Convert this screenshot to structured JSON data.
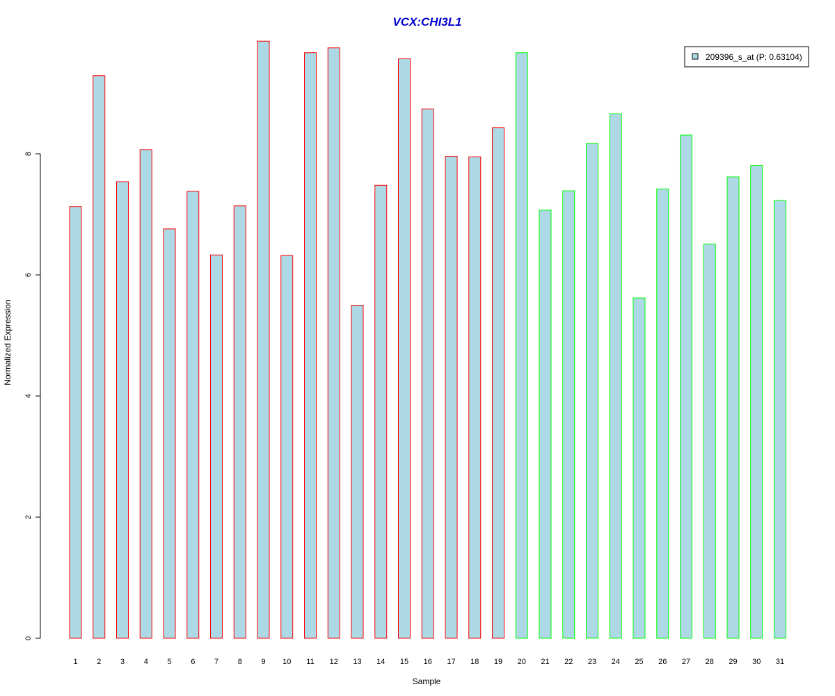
{
  "chart_data": {
    "type": "bar",
    "title": "VCX:CHI3L1",
    "xlabel": "Sample",
    "ylabel": "Normalized Expression",
    "categories": [
      "1",
      "2",
      "3",
      "4",
      "5",
      "6",
      "7",
      "8",
      "9",
      "10",
      "11",
      "12",
      "13",
      "14",
      "15",
      "16",
      "17",
      "18",
      "19",
      "20",
      "21",
      "22",
      "23",
      "24",
      "25",
      "26",
      "27",
      "28",
      "29",
      "30",
      "31"
    ],
    "values": [
      7.13,
      9.29,
      7.54,
      8.07,
      6.76,
      7.38,
      6.33,
      7.14,
      9.86,
      6.32,
      9.67,
      9.75,
      5.5,
      7.48,
      9.57,
      8.74,
      7.96,
      7.95,
      8.43,
      9.67,
      7.07,
      7.39,
      8.17,
      8.66,
      5.62,
      7.42,
      8.31,
      6.51,
      7.62,
      7.81,
      7.23
    ],
    "groups": [
      "1",
      "1",
      "1",
      "1",
      "1",
      "1",
      "1",
      "1",
      "1",
      "1",
      "1",
      "1",
      "1",
      "1",
      "1",
      "1",
      "1",
      "1",
      "1",
      "2",
      "2",
      "2",
      "2",
      "2",
      "2",
      "2",
      "2",
      "2",
      "2",
      "2",
      "2"
    ],
    "ylim": [
      0,
      10
    ],
    "yticks": [
      "0",
      "2",
      "4",
      "6",
      "8"
    ],
    "grid": false,
    "legend": {
      "placement": "top-right",
      "entries": [
        "209396_s_at (P: 0.63104)"
      ]
    },
    "colors": {
      "title": "#0000CC",
      "bar_fill": "#ADD8E6",
      "group_1_border": "#FF0000",
      "group_2_border": "#00FF00"
    }
  }
}
